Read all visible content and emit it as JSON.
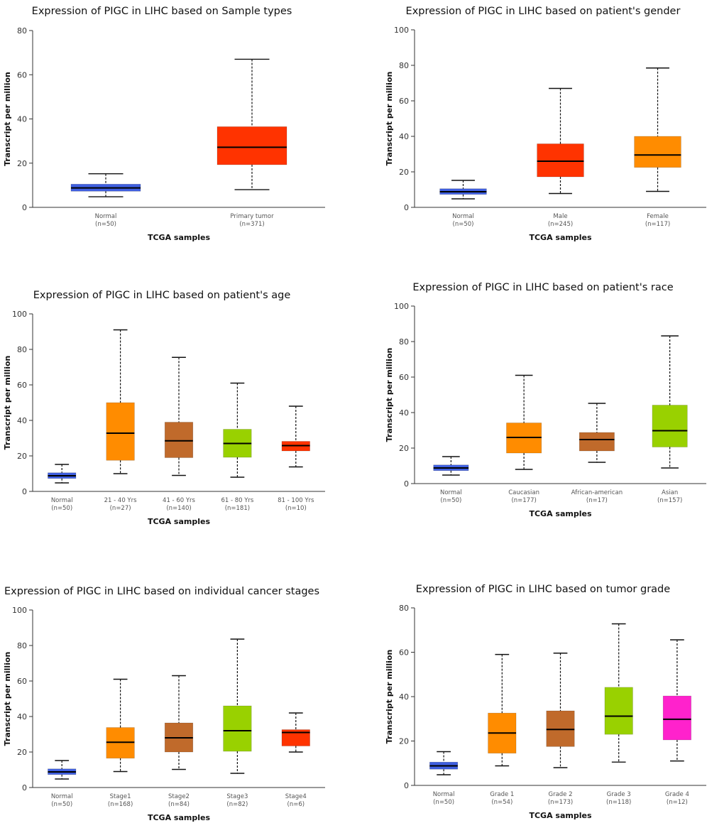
{
  "chart_data": [
    {
      "type": "box",
      "title": "Expression of PIGC in LIHC based on Sample types",
      "xlabel": "TCGA samples",
      "ylabel": "Transcript per million",
      "ylim": [
        0,
        80
      ],
      "yticks": [
        0,
        20,
        40,
        60,
        80
      ],
      "categories": [
        {
          "label": "Normal",
          "n": "(n=50)",
          "color": "#3f5fe0",
          "min": 4.8,
          "q1": 7.3,
          "median": 8.8,
          "q3": 10.5,
          "max": 15.2
        },
        {
          "label": "Primary tumor",
          "n": "(n=371)",
          "color": "#ff3300",
          "min": 8,
          "q1": 19.3,
          "median": 27.2,
          "q3": 36.5,
          "max": 67
        }
      ]
    },
    {
      "type": "box",
      "title": "Expression of PIGC in LIHC based on patient's gender",
      "xlabel": "TCGA samples",
      "ylabel": "Transcript per million",
      "ylim": [
        0,
        100
      ],
      "yticks": [
        0,
        20,
        40,
        60,
        80,
        100
      ],
      "categories": [
        {
          "label": "Normal",
          "n": "(n=50)",
          "color": "#3f5fe0",
          "min": 4.8,
          "q1": 7.3,
          "median": 8.8,
          "q3": 10.5,
          "max": 15.2
        },
        {
          "label": "Male",
          "n": "(n=245)",
          "color": "#ff3300",
          "min": 7.8,
          "q1": 17.2,
          "median": 26,
          "q3": 35.8,
          "max": 67
        },
        {
          "label": "Female",
          "n": "(n=117)",
          "color": "#ff8c00",
          "min": 9,
          "q1": 22.5,
          "median": 29.5,
          "q3": 40,
          "max": 78.5
        }
      ]
    },
    {
      "type": "box",
      "title": "Expression of PIGC in LIHC based on patient's age",
      "xlabel": "TCGA samples",
      "ylabel": "Transcript per million",
      "ylim": [
        0,
        100
      ],
      "yticks": [
        0,
        20,
        40,
        60,
        80,
        100
      ],
      "categories": [
        {
          "label": "Normal",
          "n": "(n=50)",
          "color": "#3f5fe0",
          "min": 4.8,
          "q1": 7.3,
          "median": 8.8,
          "q3": 10.5,
          "max": 15.2
        },
        {
          "label": "21 - 40 Yrs",
          "n": "(n=27)",
          "color": "#ff8c00",
          "min": 10,
          "q1": 17.5,
          "median": 32.8,
          "q3": 50,
          "max": 91
        },
        {
          "label": "41 - 60 Yrs",
          "n": "(n=140)",
          "color": "#c06a2b",
          "min": 9,
          "q1": 19,
          "median": 28.5,
          "q3": 39,
          "max": 75.5
        },
        {
          "label": "61 - 80 Yrs",
          "n": "(n=181)",
          "color": "#99d100",
          "min": 8,
          "q1": 19.2,
          "median": 27,
          "q3": 35,
          "max": 61
        },
        {
          "label": "81 - 100 Yrs",
          "n": "(n=10)",
          "color": "#ff3300",
          "min": 13.8,
          "q1": 22.8,
          "median": 25.8,
          "q3": 28.2,
          "max": 48
        }
      ]
    },
    {
      "type": "box",
      "title": "Expression of PIGC in LIHC based on patient's race",
      "xlabel": "TCGA samples",
      "ylabel": "Transcript per million",
      "ylim": [
        0,
        100
      ],
      "yticks": [
        0,
        20,
        40,
        60,
        80,
        100
      ],
      "categories": [
        {
          "label": "Normal",
          "n": "(n=50)",
          "color": "#3f5fe0",
          "min": 4.8,
          "q1": 7.3,
          "median": 8.8,
          "q3": 10.5,
          "max": 15.2
        },
        {
          "label": "Caucasian",
          "n": "(n=177)",
          "color": "#ff8c00",
          "min": 8,
          "q1": 17.2,
          "median": 26,
          "q3": 34.2,
          "max": 61
        },
        {
          "label": "African-american",
          "n": "(n=17)",
          "color": "#c06a2b",
          "min": 12,
          "q1": 18.4,
          "median": 24.8,
          "q3": 28.8,
          "max": 45.2
        },
        {
          "label": "Asian",
          "n": "(n=157)",
          "color": "#99d100",
          "min": 8.8,
          "q1": 20.6,
          "median": 29.8,
          "q3": 44.2,
          "max": 83.2
        }
      ]
    },
    {
      "type": "box",
      "title": "Expression of PIGC in LIHC based on individual cancer stages",
      "xlabel": "TCGA samples",
      "ylabel": "Transcript per million",
      "ylim": [
        0,
        100
      ],
      "yticks": [
        0,
        20,
        40,
        60,
        80,
        100
      ],
      "categories": [
        {
          "label": "Normal",
          "n": "(n=50)",
          "color": "#3f5fe0",
          "min": 4.8,
          "q1": 7.3,
          "median": 8.8,
          "q3": 10.5,
          "max": 15.2
        },
        {
          "label": "Stage1",
          "n": "(n=168)",
          "color": "#ff8c00",
          "min": 9,
          "q1": 16.5,
          "median": 25.5,
          "q3": 33.8,
          "max": 61
        },
        {
          "label": "Stage2",
          "n": "(n=84)",
          "color": "#c06a2b",
          "min": 10.2,
          "q1": 20,
          "median": 28,
          "q3": 36.4,
          "max": 63
        },
        {
          "label": "Stage3",
          "n": "(n=82)",
          "color": "#99d100",
          "min": 8,
          "q1": 20.4,
          "median": 32,
          "q3": 46,
          "max": 83.6
        },
        {
          "label": "Stage4",
          "n": "(n=6)",
          "color": "#ff3300",
          "min": 20,
          "q1": 23.4,
          "median": 31,
          "q3": 32.6,
          "max": 42
        }
      ]
    },
    {
      "type": "box",
      "title": "Expression of PIGC in LIHC based on tumor grade",
      "xlabel": "TCGA samples",
      "ylabel": "Transcript per million",
      "ylim": [
        0,
        80
      ],
      "yticks": [
        0,
        20,
        40,
        60,
        80
      ],
      "categories": [
        {
          "label": "Normal",
          "n": "(n=50)",
          "color": "#3f5fe0",
          "min": 4.8,
          "q1": 7.3,
          "median": 8.8,
          "q3": 10.5,
          "max": 15.2
        },
        {
          "label": "Grade 1",
          "n": "(n=54)",
          "color": "#ff8c00",
          "min": 8.8,
          "q1": 14.5,
          "median": 23.6,
          "q3": 32.6,
          "max": 59
        },
        {
          "label": "Grade 2",
          "n": "(n=173)",
          "color": "#c06a2b",
          "min": 8,
          "q1": 17.5,
          "median": 25.2,
          "q3": 33.6,
          "max": 59.6
        },
        {
          "label": "Grade 3",
          "n": "(n=118)",
          "color": "#99d100",
          "min": 10.5,
          "q1": 23,
          "median": 31.2,
          "q3": 44.2,
          "max": 72.8
        },
        {
          "label": "Grade 4",
          "n": "(n=12)",
          "color": "#ff22cc",
          "min": 11,
          "q1": 20.5,
          "median": 29.8,
          "q3": 40.3,
          "max": 65.6
        }
      ]
    }
  ]
}
